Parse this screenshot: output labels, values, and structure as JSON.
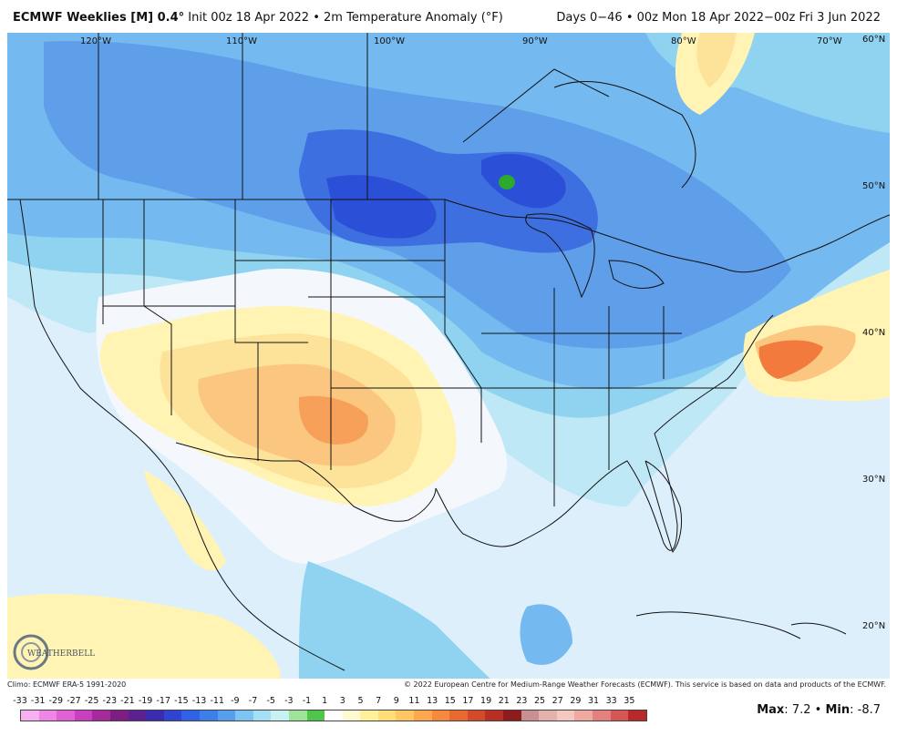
{
  "header": {
    "model": "ECMWF Weeklies [M] 0.4",
    "degree_sym": "°",
    "init_text": "Init 00z 18 Apr 2022",
    "bullet": "•",
    "field": "2m Temperature Anomaly (°F)",
    "range": "Days 0−46 • 00z Mon 18 Apr 2022−00z Fri 3 Jun 2022"
  },
  "map": {
    "longitude_labels": [
      "120°W",
      "110°W",
      "100°W",
      "90°W",
      "80°W",
      "70°W"
    ],
    "latitude_labels": [
      "60°N",
      "50°N",
      "40°N",
      "30°N",
      "20°N"
    ],
    "logo_text": "WEATHERBELL",
    "colors": {
      "ocean_light": "#dceffb",
      "cold_1": "#bfe8f7",
      "cold_2": "#8fd3f1",
      "cold_3": "#74b9ef",
      "cold_4": "#5f9ee8",
      "cold_5": "#3d6fe0",
      "cold_6": "#2b4fd6",
      "green_spot": "#2daa2d",
      "neutral": "#f4f8fc",
      "warm_1": "#fff4b3",
      "warm_2": "#fde29a",
      "warm_3": "#fbc680",
      "warm_4": "#f7a05a",
      "warm_5": "#f17a3c",
      "border": "#111111"
    }
  },
  "footer": {
    "climo": "Climo: ECMWF ERA-5 1991-2020",
    "copyright": "© 2022 European Centre for Medium-Range Weather Forecasts (ECMWF). This service is based on data and products of the ECMWF."
  },
  "legend": {
    "labels": [
      "-33",
      "-31",
      "-29",
      "-27",
      "-25",
      "-23",
      "-21",
      "-19",
      "-17",
      "-15",
      "-13",
      "-11",
      "-9",
      "-7",
      "-5",
      "-3",
      "-1",
      "1",
      "3",
      "5",
      "7",
      "9",
      "11",
      "13",
      "15",
      "17",
      "19",
      "21",
      "23",
      "25",
      "27",
      "29",
      "31",
      "33",
      "35"
    ],
    "colors": [
      "#f7b0f0",
      "#ee86e6",
      "#e060d6",
      "#c93fc2",
      "#a52a9e",
      "#7e1e82",
      "#5b2091",
      "#3a2bb0",
      "#2f45d1",
      "#2f62e4",
      "#3d7fe8",
      "#55a0ee",
      "#7dc3f3",
      "#a6dff5",
      "#c9f0f3",
      "#9fe39a",
      "#4fc64a",
      "#ffffff",
      "#fffbd0",
      "#fff09c",
      "#ffde7a",
      "#ffc663",
      "#fca84f",
      "#f58a3f",
      "#e96a31",
      "#d44a28",
      "#b83024",
      "#8e1c1c",
      "#c89090",
      "#e4b2ad",
      "#f3c8c0",
      "#f0a9a0",
      "#e58080",
      "#d65555",
      "#b82a2a"
    ]
  },
  "stats": {
    "max_label": "Max",
    "max_value": "7.2",
    "sep": "•",
    "min_label": "Min",
    "min_value": "-8.7"
  }
}
